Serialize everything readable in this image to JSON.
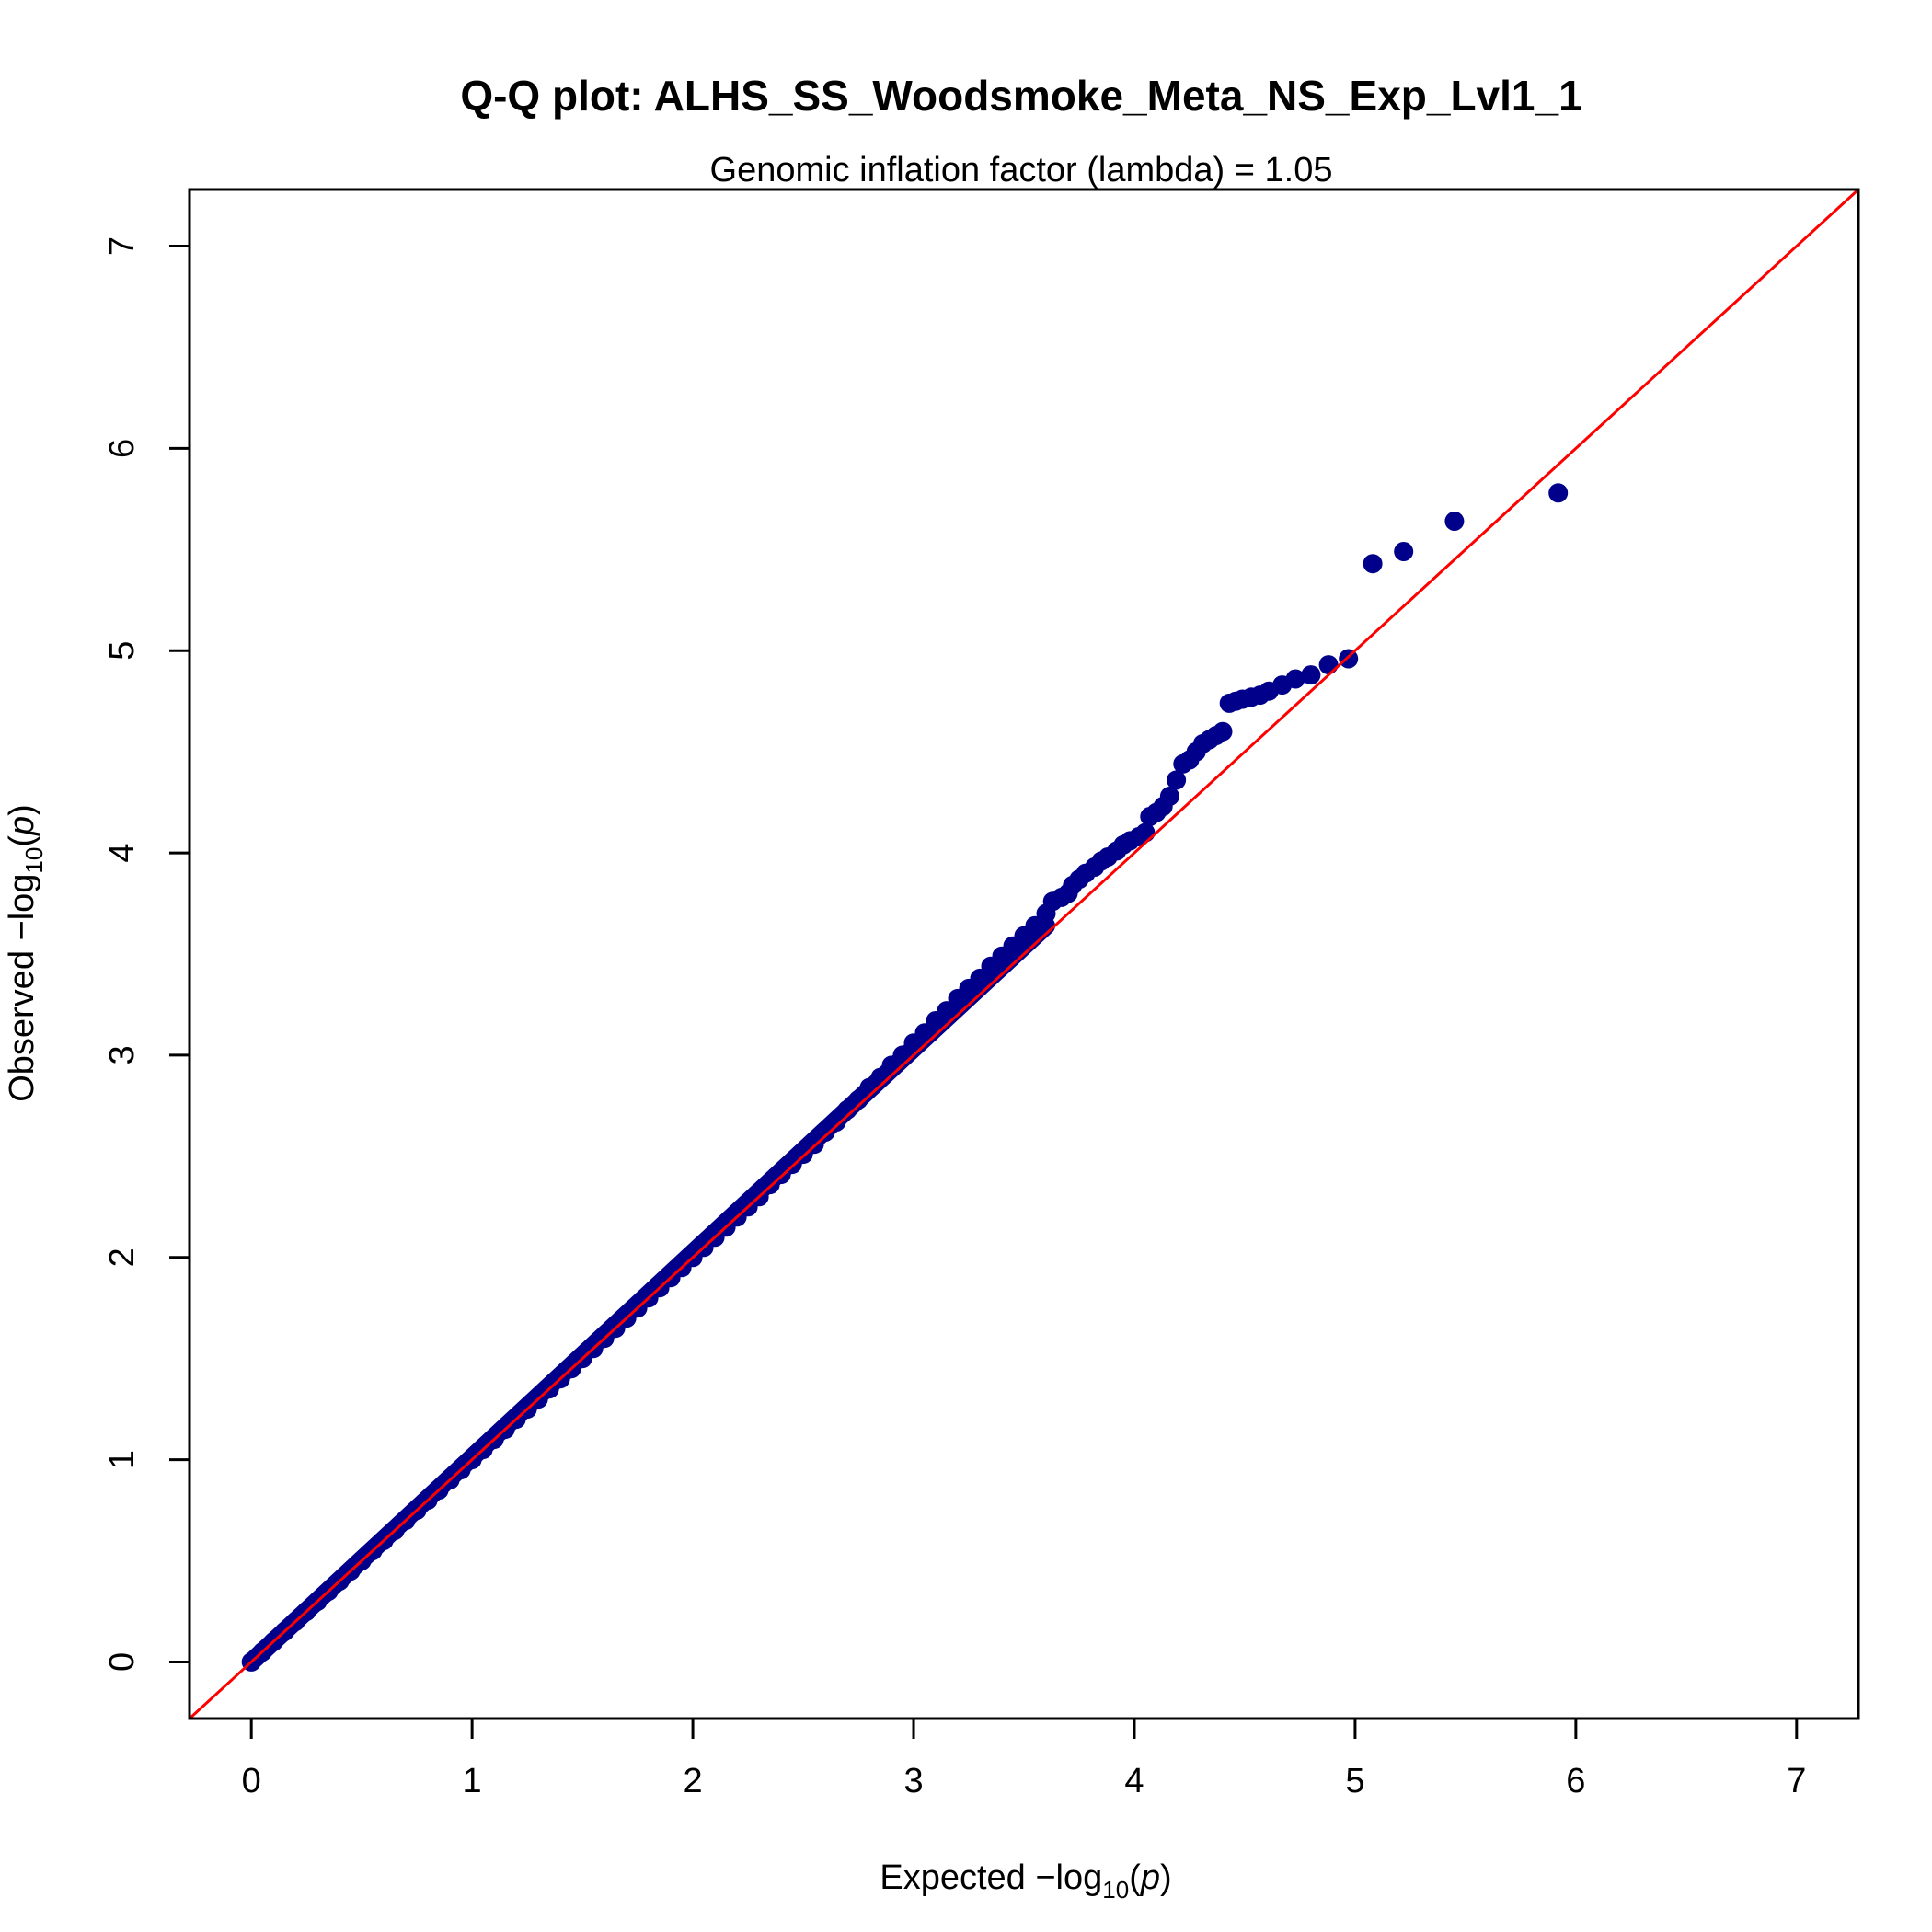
{
  "chart_data": {
    "type": "scatter",
    "title": "Q-Q plot: ALHS_SS_Woodsmoke_Meta_NS_Exp_Lvl1_1",
    "subtitle": "Genomic inflation factor (lambda) = 1.05",
    "xlabel": {
      "prefix": "Expected  −log",
      "subscript": "10",
      "open": "(",
      "var": "p",
      "close": ")"
    },
    "ylabel": {
      "prefix": "Observed  −log",
      "subscript": "10",
      "open": "(",
      "var": "p",
      "close": ")"
    },
    "xlim": [
      -0.28,
      7.28
    ],
    "ylim": [
      -0.28,
      7.28
    ],
    "x_ticks": [
      "0",
      "1",
      "2",
      "3",
      "4",
      "5",
      "6",
      "7"
    ],
    "y_ticks": [
      "0",
      "1",
      "2",
      "3",
      "4",
      "5",
      "6",
      "7"
    ],
    "grid": false,
    "point_color": "#00008B",
    "reference_line": {
      "slope": 1,
      "intercept": 0,
      "color": "#FF0000"
    },
    "series": [
      {
        "x": [
          0.0,
          0.05,
          0.1,
          0.15,
          0.2,
          0.25,
          0.3,
          0.35,
          0.4,
          0.45,
          0.5,
          0.55,
          0.6,
          0.65,
          0.7,
          0.75,
          0.8,
          0.85,
          0.9,
          0.95,
          1.0,
          1.05,
          1.1,
          1.15,
          1.2,
          1.25,
          1.3,
          1.35,
          1.4,
          1.45,
          1.5,
          1.55,
          1.6,
          1.65,
          1.7,
          1.75,
          1.8,
          1.85,
          1.9,
          1.95,
          2.0,
          2.05,
          2.1,
          2.15,
          2.2,
          2.25,
          2.3,
          2.35,
          2.4,
          2.45,
          2.5,
          2.55,
          2.6,
          2.65,
          2.7,
          2.75,
          2.8,
          2.85,
          2.9,
          2.95,
          3.0,
          3.05,
          3.1,
          3.15,
          3.2,
          3.25,
          3.3,
          3.35,
          3.4,
          3.45,
          3.5,
          3.55,
          3.6,
          3.63,
          3.67,
          3.7,
          3.72,
          3.75,
          3.78,
          3.82,
          3.85,
          3.88,
          3.92,
          3.95,
          3.98,
          4.02,
          4.05,
          4.07,
          4.1,
          4.13,
          4.16,
          4.19,
          4.22,
          4.25,
          4.28,
          4.31,
          4.34,
          4.37,
          4.4,
          4.43,
          4.46,
          4.49,
          4.53,
          4.57,
          4.61,
          4.67,
          4.73,
          4.8,
          4.88,
          4.97,
          5.08,
          5.22,
          5.45,
          5.92
        ],
        "y": [
          0.0,
          0.05,
          0.1,
          0.15,
          0.2,
          0.25,
          0.3,
          0.35,
          0.4,
          0.45,
          0.5,
          0.55,
          0.6,
          0.65,
          0.7,
          0.75,
          0.8,
          0.85,
          0.9,
          0.95,
          1.0,
          1.05,
          1.1,
          1.15,
          1.2,
          1.25,
          1.3,
          1.35,
          1.4,
          1.45,
          1.5,
          1.55,
          1.6,
          1.65,
          1.7,
          1.75,
          1.8,
          1.85,
          1.9,
          1.95,
          2.0,
          2.05,
          2.1,
          2.15,
          2.2,
          2.25,
          2.3,
          2.36,
          2.41,
          2.46,
          2.51,
          2.56,
          2.62,
          2.67,
          2.73,
          2.78,
          2.84,
          2.89,
          2.95,
          3.0,
          3.06,
          3.11,
          3.17,
          3.22,
          3.28,
          3.33,
          3.38,
          3.44,
          3.49,
          3.54,
          3.59,
          3.64,
          3.7,
          3.76,
          3.78,
          3.8,
          3.84,
          3.87,
          3.9,
          3.93,
          3.96,
          3.98,
          4.01,
          4.04,
          4.06,
          4.08,
          4.1,
          4.18,
          4.2,
          4.23,
          4.28,
          4.36,
          4.44,
          4.46,
          4.5,
          4.54,
          4.56,
          4.58,
          4.6,
          4.74,
          4.75,
          4.76,
          4.77,
          4.78,
          4.8,
          4.83,
          4.86,
          4.88,
          4.93,
          4.96,
          5.43,
          5.49,
          5.64,
          5.78
        ]
      }
    ]
  }
}
